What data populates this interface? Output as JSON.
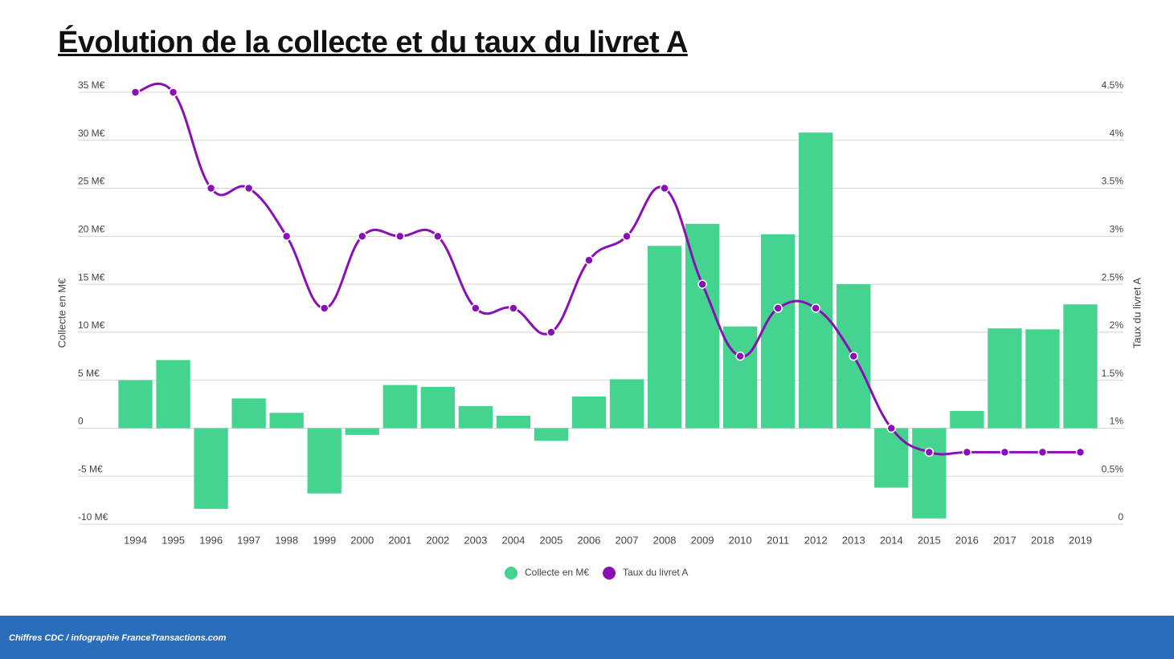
{
  "chart_data": {
    "type": "bar-line",
    "title": "Évolution de la collecte et du taux du livret A",
    "source": "Chiffres CDC / infographie FranceTransactions.com",
    "ylabel": "Collecte en M€",
    "y2label": "Taux du livret A",
    "categories": [
      "1994",
      "1995",
      "1996",
      "1997",
      "1998",
      "1999",
      "2000",
      "2001",
      "2002",
      "2003",
      "2004",
      "2005",
      "2006",
      "2007",
      "2008",
      "2009",
      "2010",
      "2011",
      "2012",
      "2013",
      "2014",
      "2015",
      "2016",
      "2017",
      "2018",
      "2019"
    ],
    "series": [
      {
        "name": "Collecte en M€",
        "type": "bar",
        "color": "#44d48f",
        "values": [
          5.0,
          7.1,
          -8.4,
          3.1,
          1.6,
          -6.8,
          -0.7,
          4.5,
          4.3,
          2.3,
          1.3,
          -1.3,
          3.3,
          5.1,
          19.0,
          21.3,
          10.6,
          20.2,
          30.8,
          15.0,
          -6.2,
          -9.4,
          1.8,
          10.4,
          10.3,
          12.9
        ]
      },
      {
        "name": "Taux du livret A",
        "type": "line",
        "axis": "y2",
        "color": "#8a0fb5",
        "values": [
          4.5,
          4.5,
          3.5,
          3.5,
          3,
          2.25,
          3,
          3,
          3,
          2.25,
          2.25,
          2,
          2.75,
          3,
          3.5,
          2.5,
          1.75,
          2.25,
          2.25,
          1.75,
          1,
          0.75,
          0.75,
          0.75,
          0.75,
          0.75
        ]
      }
    ],
    "ylim": [
      -10,
      35
    ],
    "yticks": [
      {
        "value": -10,
        "label": "-10 M€"
      },
      {
        "value": -5,
        "label": "-5 M€"
      },
      0,
      {
        "value": 5,
        "label": "5 M€"
      },
      {
        "value": 10,
        "label": "10 M€"
      },
      {
        "value": 15,
        "label": "15 M€"
      },
      {
        "value": 20,
        "label": "20 M€"
      },
      {
        "value": 25,
        "label": "25 M€"
      },
      {
        "value": 30,
        "label": "30 M€"
      },
      {
        "value": 35,
        "label": "35 M€"
      }
    ],
    "y2lim": [
      0,
      4.5
    ],
    "y2ticks": [
      0,
      {
        "value": 0.5,
        "label": "0.5%"
      },
      {
        "value": 1,
        "label": "1%"
      },
      {
        "value": 1.5,
        "label": "1.5%"
      },
      {
        "value": 2,
        "label": "2%"
      },
      {
        "value": 2.5,
        "label": "2.5%"
      },
      {
        "value": 3,
        "label": "3%"
      },
      {
        "value": 3.5,
        "label": "3.5%"
      },
      {
        "value": 4,
        "label": "4%"
      },
      {
        "value": 4.5,
        "label": "4.5%"
      }
    ],
    "grid": true
  }
}
